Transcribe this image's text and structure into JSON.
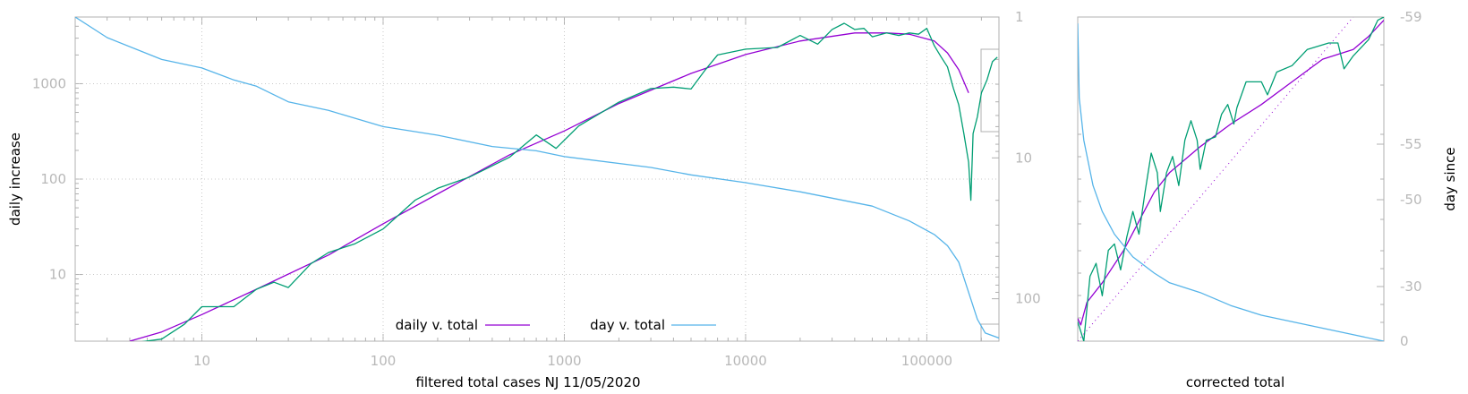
{
  "colors": {
    "magenta": "#9400d3",
    "teal": "#009e73",
    "cyan": "#56b4e9",
    "axis": "#b0b0b0",
    "grid": "#c8c8c8"
  },
  "chart_data": [
    {
      "type": "line",
      "xscale": "log",
      "yscale": "log",
      "y2scale": "log",
      "y2reversed": true,
      "xlabel": "filtered total cases NJ 11/05/2020",
      "ylabel": "daily increase",
      "xlim": [
        2,
        250000
      ],
      "ylim": [
        2,
        5000
      ],
      "y2lim": [
        1,
        200
      ],
      "grid": true,
      "xticks": [
        {
          "v": 10,
          "t": "10"
        },
        {
          "v": 100,
          "t": "100"
        },
        {
          "v": 1000,
          "t": "1000"
        },
        {
          "v": 10000,
          "t": "10000"
        },
        {
          "v": 100000,
          "t": "100000"
        }
      ],
      "yticks": [
        {
          "v": 10,
          "t": "10"
        },
        {
          "v": 100,
          "t": "100"
        },
        {
          "v": 1000,
          "t": "1000"
        }
      ],
      "y2ticks": [
        {
          "v": 1,
          "t": "1"
        },
        {
          "v": 10,
          "t": "10"
        },
        {
          "v": 100,
          "t": "100"
        }
      ],
      "legend_position": "bottom-center",
      "legend": [
        {
          "label": "daily v. total",
          "color": "#9400d3"
        },
        {
          "label": "day v. total",
          "color": "#56b4e9"
        }
      ],
      "series": [
        {
          "name": "daily v. total",
          "color": "#9400d3",
          "axis": "y",
          "points": [
            [
              4,
              2
            ],
            [
              6,
              2.5
            ],
            [
              10,
              3.8
            ],
            [
              20,
              7
            ],
            [
              50,
              16
            ],
            [
              100,
              34
            ],
            [
              200,
              70
            ],
            [
              500,
              180
            ],
            [
              1000,
              320
            ],
            [
              2000,
              620
            ],
            [
              5000,
              1280
            ],
            [
              10000,
              2020
            ],
            [
              20000,
              2800
            ],
            [
              40000,
              3400
            ],
            [
              60000,
              3400
            ],
            [
              80000,
              3300
            ],
            [
              110000,
              2800
            ],
            [
              130000,
              2100
            ],
            [
              150000,
              1400
            ],
            [
              170000,
              800
            ]
          ]
        },
        {
          "name": "",
          "color": "#009e73",
          "axis": "y",
          "points": [
            [
              4,
              1.9
            ],
            [
              6,
              2.1
            ],
            [
              8,
              3
            ],
            [
              10,
              4.6
            ],
            [
              15,
              4.6
            ],
            [
              20,
              7
            ],
            [
              25,
              8.3
            ],
            [
              30,
              7.3
            ],
            [
              40,
              13
            ],
            [
              50,
              17
            ],
            [
              70,
              21
            ],
            [
              100,
              30
            ],
            [
              150,
              60
            ],
            [
              200,
              80
            ],
            [
              300,
              105
            ],
            [
              500,
              170
            ],
            [
              700,
              290
            ],
            [
              900,
              210
            ],
            [
              1200,
              360
            ],
            [
              2000,
              640
            ],
            [
              3000,
              890
            ],
            [
              4000,
              920
            ],
            [
              5000,
              880
            ],
            [
              6000,
              1400
            ],
            [
              7000,
              2000
            ],
            [
              10000,
              2300
            ],
            [
              15000,
              2400
            ],
            [
              20000,
              3200
            ],
            [
              25000,
              2600
            ],
            [
              30000,
              3700
            ],
            [
              35000,
              4300
            ],
            [
              40000,
              3700
            ],
            [
              45000,
              3800
            ],
            [
              50000,
              3100
            ],
            [
              60000,
              3400
            ],
            [
              70000,
              3200
            ],
            [
              80000,
              3400
            ],
            [
              90000,
              3300
            ],
            [
              100000,
              3800
            ],
            [
              110000,
              2500
            ],
            [
              120000,
              1900
            ],
            [
              130000,
              1500
            ],
            [
              140000,
              900
            ],
            [
              150000,
              600
            ],
            [
              160000,
              300
            ],
            [
              170000,
              150
            ],
            [
              175000,
              60
            ],
            [
              180000,
              300
            ],
            [
              190000,
              450
            ],
            [
              200000,
              800
            ],
            [
              215000,
              1100
            ],
            [
              230000,
              1700
            ],
            [
              245000,
              1900
            ]
          ]
        },
        {
          "name": "day v. total",
          "color": "#56b4e9",
          "axis": "y2",
          "points": [
            [
              2,
              1
            ],
            [
              3,
              1.4
            ],
            [
              6,
              2
            ],
            [
              10,
              2.3
            ],
            [
              15,
              2.8
            ],
            [
              20,
              3.1
            ],
            [
              30,
              4
            ],
            [
              50,
              4.6
            ],
            [
              100,
              6
            ],
            [
              200,
              6.9
            ],
            [
              400,
              8.3
            ],
            [
              700,
              8.9
            ],
            [
              1000,
              9.8
            ],
            [
              3000,
              11.7
            ],
            [
              5000,
              13.2
            ],
            [
              10000,
              15
            ],
            [
              20000,
              17.4
            ],
            [
              50000,
              22
            ],
            [
              80000,
              28
            ],
            [
              110000,
              35
            ],
            [
              130000,
              42
            ],
            [
              150000,
              55
            ],
            [
              170000,
              90
            ],
            [
              190000,
              140
            ],
            [
              210000,
              175
            ],
            [
              250000,
              190
            ]
          ]
        }
      ]
    },
    {
      "type": "line",
      "xlabel": "corrected total",
      "ylabel": "day since",
      "y2ticks": [
        {
          "v": -59,
          "t": "-59"
        },
        {
          "v": -55,
          "t": "-55"
        },
        {
          "v": -50,
          "t": "-50"
        },
        {
          "v": -30,
          "t": "-30"
        },
        {
          "v": 0,
          "t": "0"
        }
      ],
      "y2scale": "log",
      "y2reversed": true,
      "xlim": [
        0,
        1
      ],
      "ylim": [
        0,
        1
      ],
      "series": [
        {
          "name": "",
          "color": "#9400d3",
          "points": [
            [
              0,
              0.07
            ],
            [
              0.01,
              0.05
            ],
            [
              0.03,
              0.12
            ],
            [
              0.08,
              0.18
            ],
            [
              0.15,
              0.28
            ],
            [
              0.2,
              0.37
            ],
            [
              0.25,
              0.46
            ],
            [
              0.3,
              0.52
            ],
            [
              0.4,
              0.6
            ],
            [
              0.5,
              0.67
            ],
            [
              0.6,
              0.73
            ],
            [
              0.7,
              0.8
            ],
            [
              0.8,
              0.87
            ],
            [
              0.9,
              0.9
            ],
            [
              0.95,
              0.94
            ],
            [
              1,
              0.99
            ]
          ]
        },
        {
          "name": "",
          "color": "#009e73",
          "points": [
            [
              0,
              0.06
            ],
            [
              0.02,
              0.0
            ],
            [
              0.04,
              0.2
            ],
            [
              0.06,
              0.24
            ],
            [
              0.08,
              0.14
            ],
            [
              0.1,
              0.28
            ],
            [
              0.12,
              0.3
            ],
            [
              0.14,
              0.22
            ],
            [
              0.16,
              0.32
            ],
            [
              0.18,
              0.4
            ],
            [
              0.2,
              0.33
            ],
            [
              0.22,
              0.46
            ],
            [
              0.24,
              0.58
            ],
            [
              0.26,
              0.52
            ],
            [
              0.27,
              0.4
            ],
            [
              0.29,
              0.52
            ],
            [
              0.31,
              0.57
            ],
            [
              0.33,
              0.48
            ],
            [
              0.35,
              0.62
            ],
            [
              0.37,
              0.68
            ],
            [
              0.39,
              0.62
            ],
            [
              0.4,
              0.53
            ],
            [
              0.42,
              0.62
            ],
            [
              0.45,
              0.63
            ],
            [
              0.47,
              0.7
            ],
            [
              0.49,
              0.73
            ],
            [
              0.51,
              0.67
            ],
            [
              0.52,
              0.72
            ],
            [
              0.55,
              0.8
            ],
            [
              0.6,
              0.8
            ],
            [
              0.62,
              0.76
            ],
            [
              0.65,
              0.83
            ],
            [
              0.7,
              0.85
            ],
            [
              0.75,
              0.9
            ],
            [
              0.82,
              0.92
            ],
            [
              0.85,
              0.92
            ],
            [
              0.87,
              0.84
            ],
            [
              0.9,
              0.88
            ],
            [
              0.95,
              0.93
            ],
            [
              0.98,
              0.99
            ],
            [
              1,
              1.0
            ]
          ]
        },
        {
          "name": "",
          "color": "#56b4e9",
          "points": [
            [
              0,
              0.98
            ],
            [
              0.005,
              0.75
            ],
            [
              0.02,
              0.62
            ],
            [
              0.05,
              0.48
            ],
            [
              0.08,
              0.4
            ],
            [
              0.12,
              0.33
            ],
            [
              0.18,
              0.26
            ],
            [
              0.25,
              0.21
            ],
            [
              0.3,
              0.18
            ],
            [
              0.4,
              0.15
            ],
            [
              0.5,
              0.11
            ],
            [
              0.6,
              0.08
            ],
            [
              0.7,
              0.06
            ],
            [
              0.8,
              0.04
            ],
            [
              0.9,
              0.02
            ],
            [
              1,
              0.0
            ]
          ]
        },
        {
          "name": "",
          "color": "#9400d3",
          "dotted": true,
          "points": [
            [
              0,
              0.0
            ],
            [
              0.9,
              1.0
            ]
          ]
        }
      ]
    }
  ]
}
